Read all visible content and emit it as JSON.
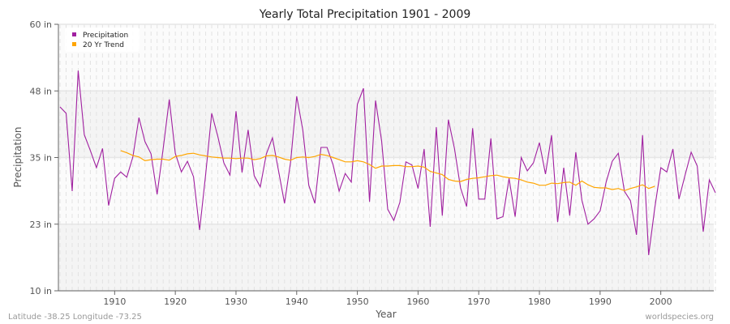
{
  "chart_data": {
    "type": "line",
    "title": "Yearly Total Precipitation 1901 - 2009",
    "xlabel": "Year",
    "ylabel": "Precipitation",
    "xlim": [
      1901,
      2009
    ],
    "ylim": [
      10,
      60
    ],
    "yticks": [
      10,
      22.5,
      35,
      47.5,
      60
    ],
    "ytick_labels": [
      "10 in",
      "23 in",
      "35 in",
      "48 in",
      "60 in"
    ],
    "xticks": [
      1910,
      1920,
      1930,
      1940,
      1950,
      1960,
      1970,
      1980,
      1990,
      2000
    ],
    "xtick_labels": [
      "1910",
      "1920",
      "1930",
      "1940",
      "1950",
      "1960",
      "1970",
      "1980",
      "1990",
      "2000"
    ],
    "grid": true,
    "legend_position": "top-left",
    "series": [
      {
        "name": "Precipitation",
        "color": "#a020a0",
        "start_year": 1901,
        "values": [
          44.5,
          43.3,
          28.7,
          51.3,
          39.3,
          36.3,
          33.1,
          36.7,
          26.0,
          31.1,
          32.3,
          31.3,
          35.1,
          42.5,
          38.0,
          35.7,
          28.1,
          36.7,
          45.9,
          35.8,
          32.3,
          34.3,
          31.4,
          21.4,
          31.9,
          43.3,
          39.0,
          34.0,
          31.7,
          43.7,
          32.2,
          40.2,
          31.6,
          29.5,
          35.7,
          38.7,
          32.6,
          26.4,
          34.2,
          46.5,
          40.2,
          29.8,
          26.4,
          36.9,
          36.9,
          33.6,
          28.7,
          32.0,
          30.4,
          45.0,
          48.0,
          26.7,
          45.7,
          38.1,
          25.3,
          23.2,
          26.6,
          34.2,
          33.6,
          29.2,
          36.6,
          22.0,
          40.7,
          24.1,
          42.1,
          36.7,
          29.3,
          25.8,
          40.5,
          27.2,
          27.2,
          38.6,
          23.5,
          23.9,
          31.1,
          23.9,
          35.0,
          32.5,
          34.0,
          37.8,
          31.9,
          39.2,
          22.9,
          33.1,
          24.1,
          36.0,
          27.0,
          22.5,
          23.5,
          25.0,
          30.4,
          34.3,
          35.8,
          28.7,
          26.9,
          20.5,
          39.2,
          16.7,
          25.5,
          33.1,
          32.3,
          36.6,
          27.2,
          31.7,
          36.0,
          33.4,
          21.1,
          30.8,
          28.4
        ]
      },
      {
        "name": "20 Yr Trend",
        "color": "#ffa500",
        "start_year": 1911,
        "values": [
          36.3,
          35.9,
          35.4,
          35.1,
          34.4,
          34.6,
          34.7,
          34.7,
          34.5,
          35.2,
          35.4,
          35.7,
          35.8,
          35.5,
          35.3,
          35.1,
          35.0,
          34.9,
          34.9,
          34.8,
          34.9,
          34.9,
          34.6,
          34.8,
          35.3,
          35.4,
          35.1,
          34.7,
          34.5,
          35.0,
          35.1,
          35.0,
          35.2,
          35.6,
          35.4,
          35.0,
          34.6,
          34.2,
          34.2,
          34.4,
          34.2,
          33.7,
          33.0,
          33.4,
          33.4,
          33.5,
          33.5,
          33.3,
          33.3,
          33.4,
          33.2,
          32.4,
          32.1,
          31.8,
          30.9,
          30.6,
          30.5,
          30.9,
          31.1,
          31.2,
          31.4,
          31.6,
          31.7,
          31.4,
          31.2,
          31.1,
          30.8,
          30.4,
          30.2,
          29.8,
          29.8,
          30.2,
          30.1,
          30.3,
          30.4,
          29.8,
          30.6,
          29.9,
          29.4,
          29.3,
          29.3,
          29.0,
          29.2,
          28.8,
          29.2,
          29.5,
          29.9,
          29.2,
          29.6
        ]
      }
    ]
  },
  "footer": {
    "coords": "Latitude -38.25 Longitude -73.25",
    "source": "worldspecies.org"
  }
}
